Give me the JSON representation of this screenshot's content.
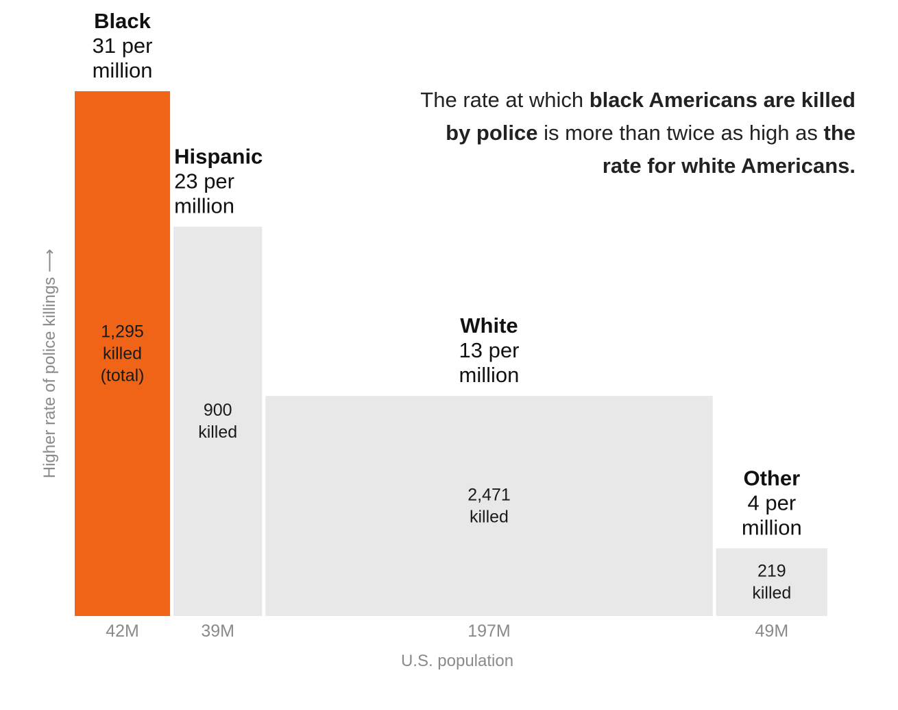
{
  "annotation": {
    "part1": "The rate at which ",
    "bold1": "black Americans are killed by police",
    "part2": " is more than twice as high as ",
    "bold2": "the rate for white Americans."
  },
  "chart_data": {
    "type": "bar",
    "variant": "variable-width",
    "xlabel": "U.S. population",
    "ylabel": "Higher rate of police killings ⟶",
    "categories": [
      "Black",
      "Hispanic",
      "White",
      "Other"
    ],
    "rates": [
      31,
      23,
      13,
      4
    ],
    "rate_labels": [
      "31 per million",
      "23 per million",
      "13 per million",
      "4 per million"
    ],
    "populations_millions": [
      42,
      39,
      197,
      49
    ],
    "population_labels": [
      "42M",
      "39M",
      "197M",
      "49M"
    ],
    "killed": [
      1295,
      900,
      2471,
      219
    ],
    "killed_labels": [
      [
        "1,295",
        "killed",
        "(total)"
      ],
      [
        "900",
        "killed"
      ],
      [
        "2,471",
        "killed"
      ],
      [
        "219",
        "killed"
      ]
    ],
    "highlight_colors": [
      "#f06418",
      "#e8e8e8",
      "#e8e8e8",
      "#e8e8e8"
    ],
    "ylim": [
      0,
      31
    ]
  }
}
